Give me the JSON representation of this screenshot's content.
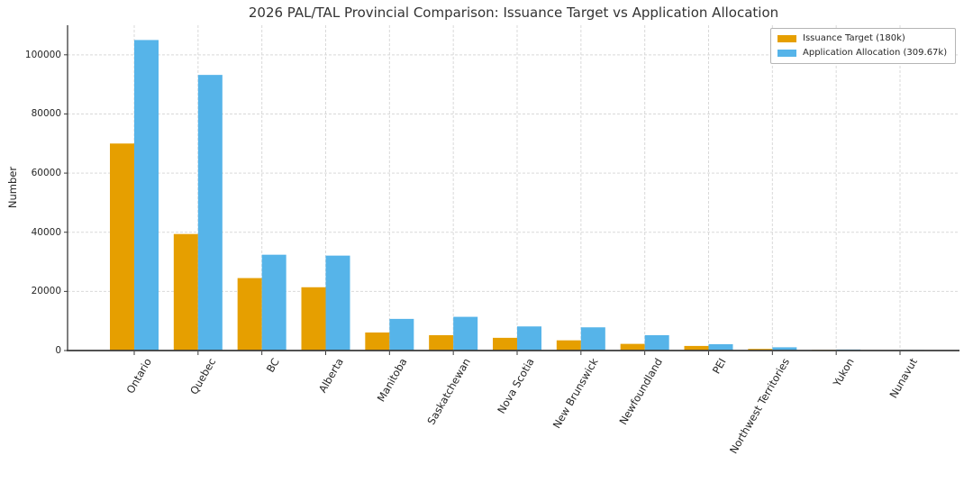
{
  "chart_data": {
    "type": "bar",
    "title": "2026 PAL/TAL Provincial Comparison: Issuance Target vs Application Allocation",
    "xlabel": "",
    "ylabel": "Number",
    "categories": [
      "Ontario",
      "Quebec",
      "BC",
      "Alberta",
      "Manitoba",
      "Saskatchewan",
      "Nova Scotia",
      "New Brunswick",
      "Newfoundland",
      "PEI",
      "Northwest Territories",
      "Yukon",
      "Nunavut"
    ],
    "series": [
      {
        "name": "Issuance Target (180k)",
        "color": "#E69F00",
        "values": [
          70000,
          39400,
          24500,
          21400,
          6100,
          5200,
          4300,
          3450,
          2250,
          1550,
          550,
          250,
          150
        ]
      },
      {
        "name": "Application Allocation (309.67k)",
        "color": "#56B4E9",
        "values": [
          105000,
          93200,
          32400,
          32100,
          10700,
          11400,
          8150,
          7850,
          5200,
          2150,
          1100,
          350,
          200
        ]
      }
    ],
    "ylim": [
      0,
      110000
    ],
    "yticks": [
      0,
      20000,
      40000,
      60000,
      80000,
      100000
    ],
    "grid": true,
    "grid_style": "dashed",
    "xtick_rotation": 60,
    "legend_position": "upper right"
  }
}
